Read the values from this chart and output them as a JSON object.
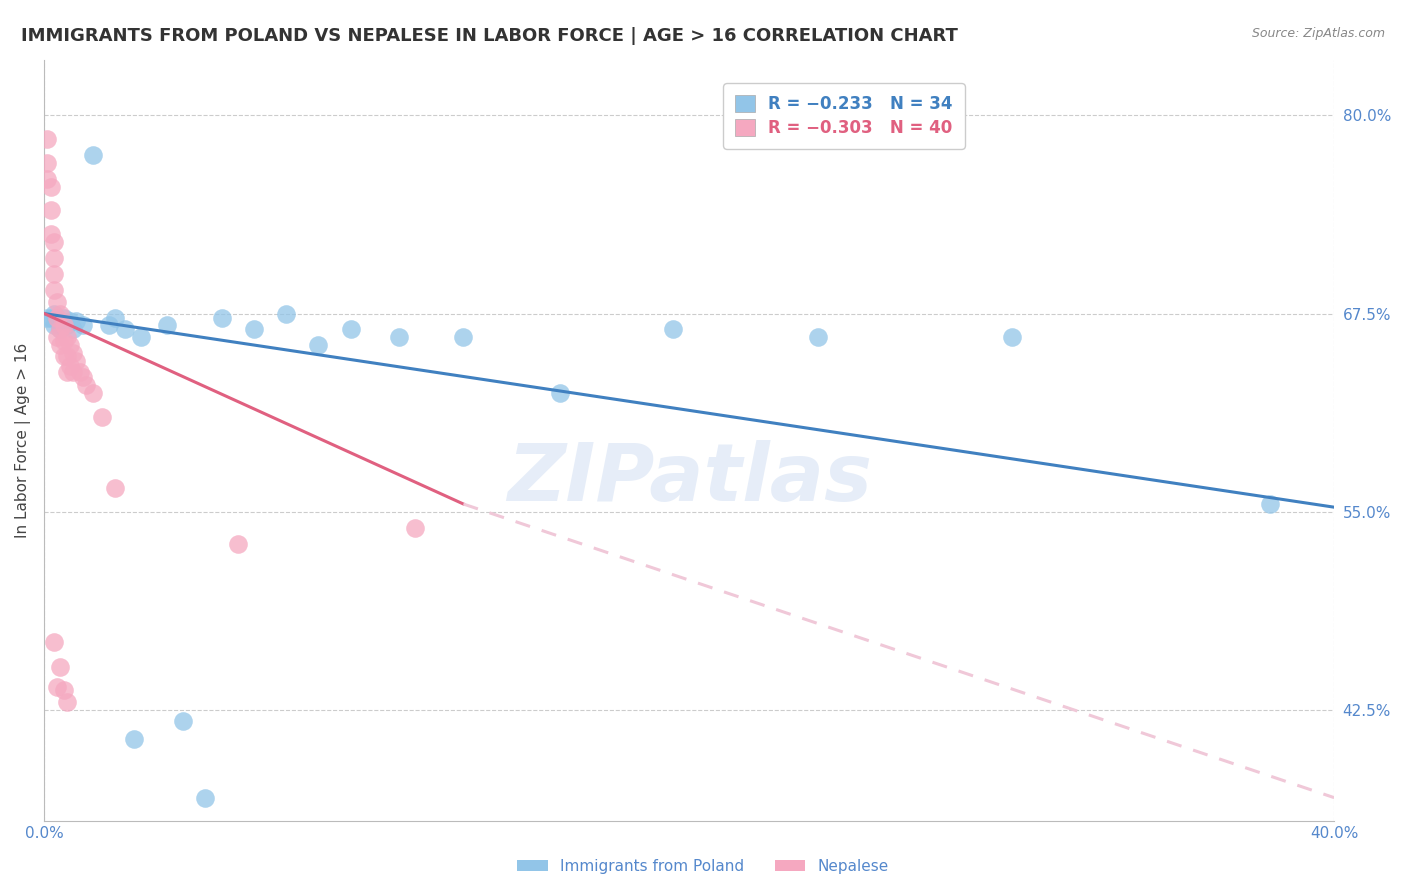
{
  "title": "IMMIGRANTS FROM POLAND VS NEPALESE IN LABOR FORCE | AGE > 16 CORRELATION CHART",
  "source_text": "Source: ZipAtlas.com",
  "ylabel": "In Labor Force | Age > 16",
  "watermark": "ZIPatlas",
  "xlim": [
    0.0,
    0.4
  ],
  "ylim": [
    0.355,
    0.835
  ],
  "ytick_values": [
    0.8,
    0.675,
    0.55,
    0.425
  ],
  "poland_color": "#92C5E8",
  "nepal_color": "#F5A8C0",
  "poland_trend_color": "#4080C0",
  "nepal_trend_color": "#E06080",
  "nepal_trend_dashed_color": "#F0C8D8",
  "background_color": "#FFFFFF",
  "grid_color": "#CCCCCC",
  "tick_color": "#5588CC",
  "title_color": "#333333",
  "title_fontsize": 13,
  "axis_label_fontsize": 11,
  "tick_fontsize": 11,
  "poland_x": [
    0.001,
    0.002,
    0.003,
    0.003,
    0.004,
    0.005,
    0.005,
    0.006,
    0.007,
    0.008,
    0.009,
    0.01,
    0.012,
    0.015,
    0.02,
    0.022,
    0.025,
    0.03,
    0.038,
    0.055,
    0.065,
    0.075,
    0.085,
    0.095,
    0.11,
    0.13,
    0.16,
    0.195,
    0.24,
    0.3,
    0.38,
    0.028,
    0.05,
    0.043
  ],
  "poland_y": [
    0.672,
    0.672,
    0.675,
    0.668,
    0.672,
    0.668,
    0.665,
    0.672,
    0.668,
    0.67,
    0.665,
    0.67,
    0.668,
    0.775,
    0.668,
    0.672,
    0.665,
    0.66,
    0.668,
    0.672,
    0.665,
    0.675,
    0.655,
    0.665,
    0.66,
    0.66,
    0.625,
    0.665,
    0.66,
    0.66,
    0.555,
    0.407,
    0.37,
    0.418
  ],
  "nepal_x": [
    0.001,
    0.001,
    0.001,
    0.002,
    0.002,
    0.002,
    0.003,
    0.003,
    0.003,
    0.003,
    0.004,
    0.004,
    0.004,
    0.005,
    0.005,
    0.005,
    0.006,
    0.006,
    0.006,
    0.007,
    0.007,
    0.007,
    0.008,
    0.008,
    0.009,
    0.009,
    0.01,
    0.011,
    0.012,
    0.013,
    0.015,
    0.018,
    0.022,
    0.06,
    0.115,
    0.003,
    0.005,
    0.004,
    0.006,
    0.007
  ],
  "nepal_y": [
    0.785,
    0.77,
    0.76,
    0.755,
    0.74,
    0.725,
    0.72,
    0.71,
    0.7,
    0.69,
    0.682,
    0.672,
    0.66,
    0.675,
    0.665,
    0.655,
    0.668,
    0.658,
    0.648,
    0.66,
    0.648,
    0.638,
    0.655,
    0.642,
    0.65,
    0.638,
    0.645,
    0.638,
    0.635,
    0.63,
    0.625,
    0.61,
    0.565,
    0.53,
    0.54,
    0.468,
    0.452,
    0.44,
    0.438,
    0.43
  ],
  "poland_trend_x0": 0.0,
  "poland_trend_y0": 0.675,
  "poland_trend_x1": 0.4,
  "poland_trend_y1": 0.553,
  "nepal_trend_x0": 0.0,
  "nepal_trend_y0": 0.675,
  "nepal_trend_x1_solid": 0.13,
  "nepal_trend_y1_solid": 0.555,
  "nepal_trend_x1_dashed": 0.4,
  "nepal_trend_y1_dashed": 0.37
}
